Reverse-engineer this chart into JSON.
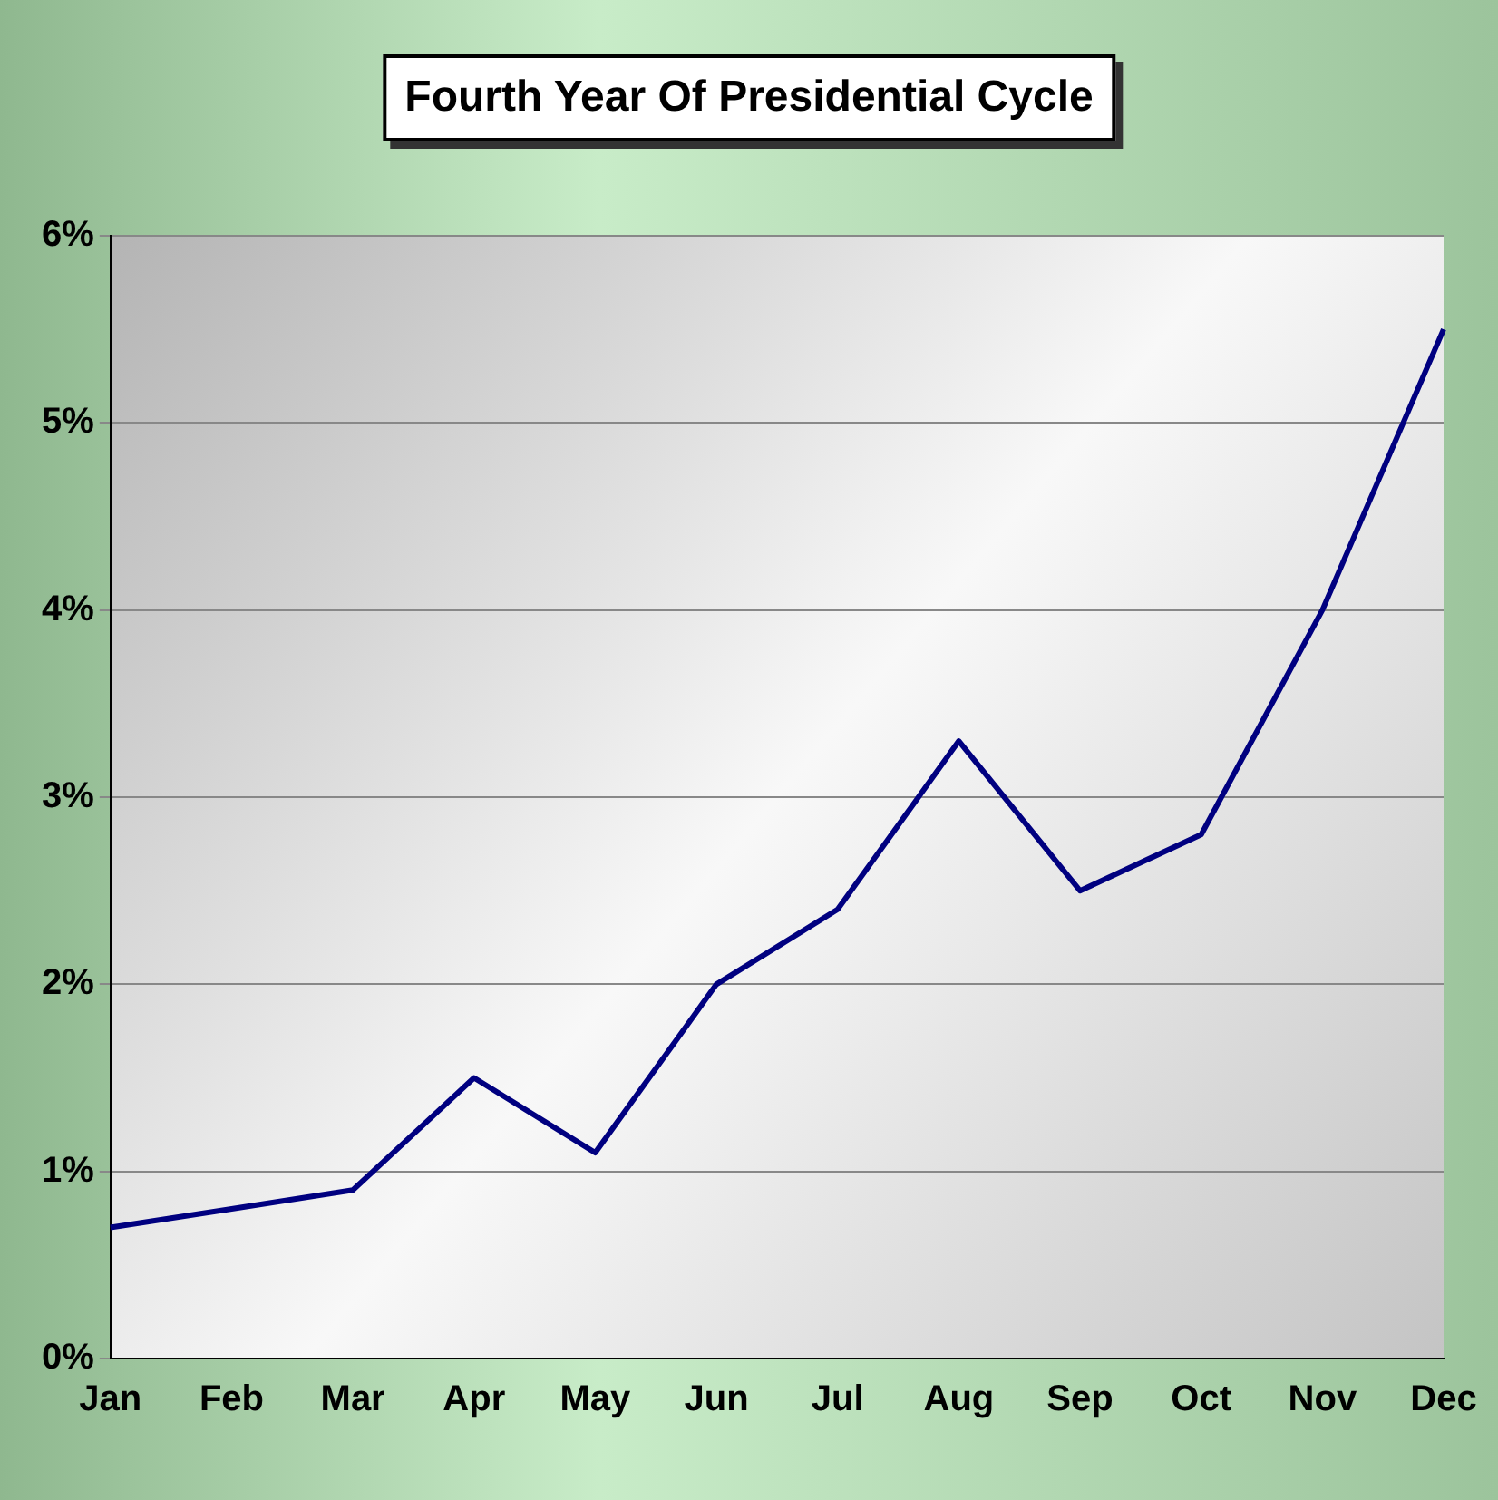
{
  "chart_data": {
    "type": "line",
    "title": "Fourth Year Of Presidential Cycle",
    "categories": [
      "Jan",
      "Feb",
      "Mar",
      "Apr",
      "May",
      "Jun",
      "Jul",
      "Aug",
      "Sep",
      "Oct",
      "Nov",
      "Dec"
    ],
    "series": [
      {
        "color": "#000080",
        "values": [
          0.7,
          0.8,
          0.9,
          1.5,
          1.1,
          2.0,
          2.4,
          3.3,
          2.5,
          2.8,
          4.0,
          5.5
        ]
      }
    ],
    "ylim": [
      0,
      6
    ],
    "yticks": [
      {
        "value": 0,
        "label": "0%"
      },
      {
        "value": 1,
        "label": "1%"
      },
      {
        "value": 2,
        "label": "2%"
      },
      {
        "value": 3,
        "label": "3%"
      },
      {
        "value": 4,
        "label": "4%"
      },
      {
        "value": 5,
        "label": "5%"
      },
      {
        "value": 6,
        "label": "6%"
      }
    ],
    "grid": "y",
    "legend": false,
    "marker": "none",
    "line_style": "solid"
  }
}
